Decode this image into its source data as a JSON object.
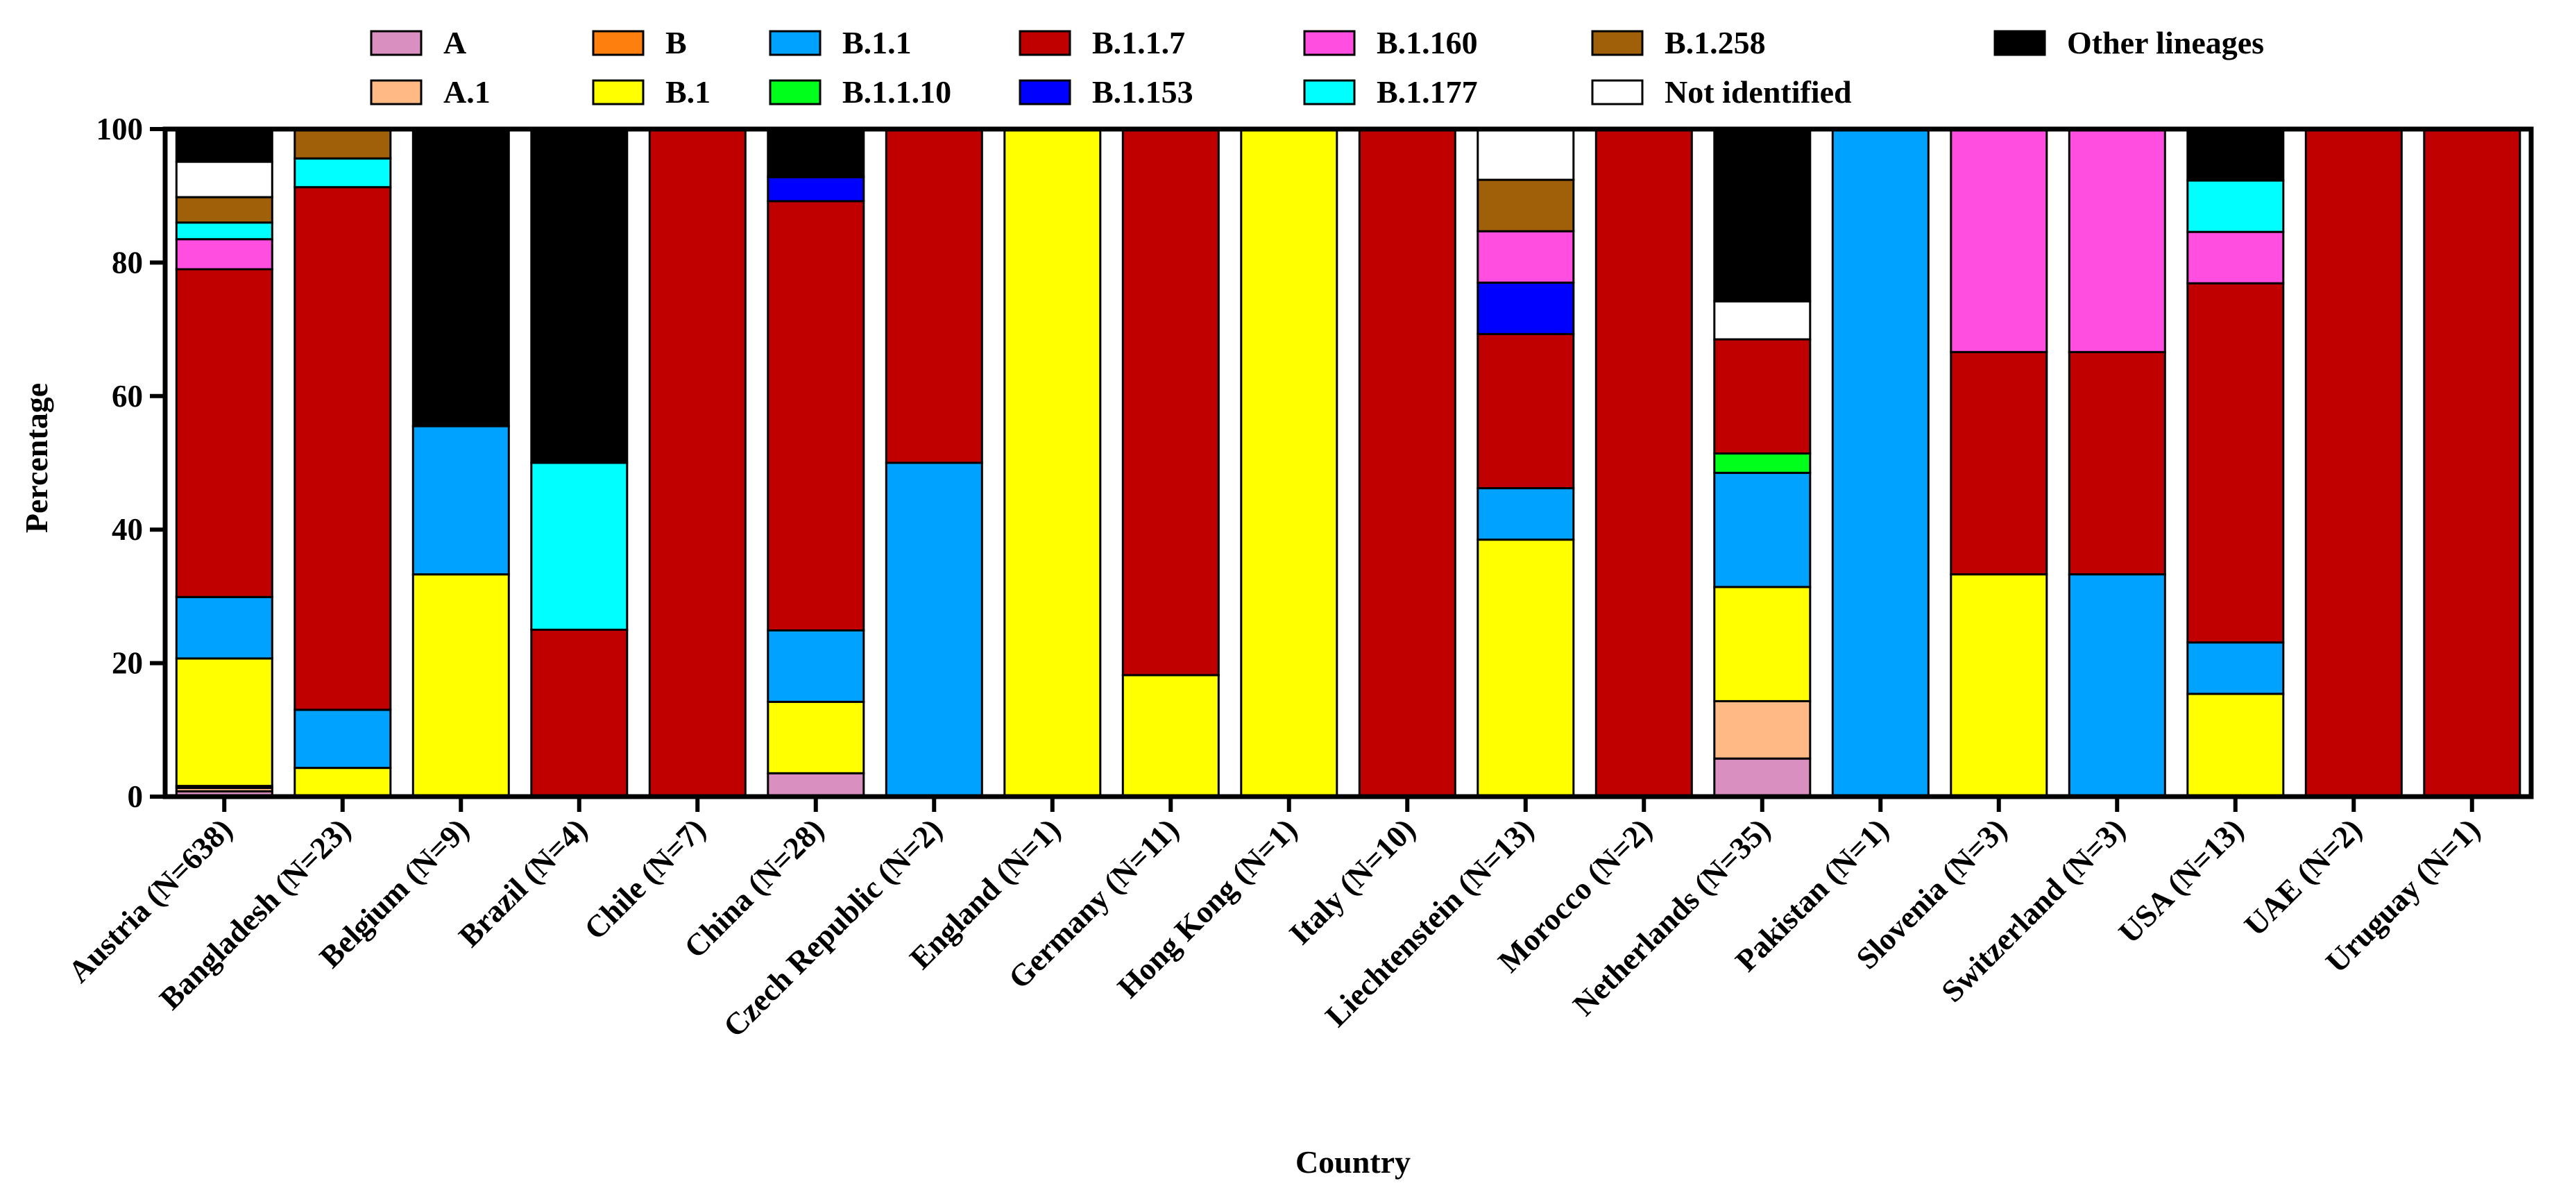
{
  "chart_data": {
    "type": "bar",
    "stacked": true,
    "title": "",
    "xlabel": "Country",
    "ylabel": "Percentage",
    "ylim": [
      0,
      100
    ],
    "yticks": [
      0,
      20,
      40,
      60,
      80,
      100
    ],
    "yticks_labels": [
      "0",
      "20",
      "40",
      "60",
      "80",
      "100"
    ],
    "grid": false,
    "legend_position": "top",
    "categories": [
      "Austria (N=638)",
      "Bangladesh (N=23)",
      "Belgium (N=9)",
      "Brazil (N=4)",
      "Chile (N=7)",
      "China (N=28)",
      "Czech Republic (N=2)",
      "England (N=1)",
      "Germany (N=11)",
      "Hong Kong (N=1)",
      "Italy (N=10)",
      "Liechtenstein (N=13)",
      "Morocco (N=2)",
      "Netherlands (N=35)",
      "Pakistan (N=1)",
      "Slovenia (N=3)",
      "Switzerland (N=3)",
      "USA (N=13)",
      "UAE (N=2)",
      "Uruguay (N=1)"
    ],
    "series": [
      {
        "name": "A",
        "color": "#d98fbf",
        "values": [
          0.8,
          0,
          0,
          0,
          0,
          3.5,
          0,
          0,
          0,
          0,
          0,
          0,
          0,
          5.7,
          0,
          0,
          0,
          0,
          0,
          0
        ]
      },
      {
        "name": "A.1",
        "color": "#ffb984",
        "values": [
          0.5,
          0,
          0,
          0,
          0,
          0,
          0,
          0,
          0,
          0,
          0,
          0,
          0,
          8.6,
          0,
          0,
          0,
          0,
          0,
          0
        ]
      },
      {
        "name": "B",
        "color": "#ff7f0e",
        "values": [
          0.3,
          0,
          0,
          0,
          0,
          0,
          0,
          0,
          0,
          0,
          0,
          0,
          0,
          0,
          0,
          0,
          0,
          0,
          0,
          0
        ]
      },
      {
        "name": "B.1",
        "color": "#ffff00",
        "values": [
          19.1,
          4.3,
          33.3,
          0,
          0,
          10.7,
          0,
          100,
          18.2,
          100,
          0,
          38.5,
          0,
          17.1,
          0,
          33.3,
          0,
          15.4,
          0,
          0
        ]
      },
      {
        "name": "B.1.1",
        "color": "#00a2ff",
        "values": [
          9.2,
          8.7,
          22.2,
          0,
          0,
          10.7,
          50,
          0,
          0,
          0,
          0,
          7.7,
          0,
          17.1,
          100,
          0,
          33.3,
          7.7,
          0,
          0
        ]
      },
      {
        "name": "B.1.1.10",
        "color": "#00ff1a",
        "values": [
          0,
          0,
          0,
          0,
          0,
          0,
          0,
          0,
          0,
          0,
          0,
          0,
          0,
          2.9,
          0,
          0,
          0,
          0,
          0,
          0
        ]
      },
      {
        "name": "B.1.1.7",
        "color": "#c00000",
        "values": [
          49.1,
          78.3,
          0,
          25,
          100,
          64.3,
          50,
          0,
          81.8,
          0,
          100,
          23.1,
          100,
          17.1,
          0,
          33.3,
          33.3,
          53.8,
          100,
          100
        ]
      },
      {
        "name": "B.1.153",
        "color": "#0000ff",
        "values": [
          0,
          0,
          0,
          0,
          0,
          3.6,
          0,
          0,
          0,
          0,
          0,
          7.7,
          0,
          0,
          0,
          0,
          0,
          0,
          0,
          0
        ]
      },
      {
        "name": "B.1.160",
        "color": "#ff4ee0",
        "values": [
          4.5,
          0,
          0,
          0,
          0,
          0,
          0,
          0,
          0,
          0,
          0,
          7.7,
          0,
          0,
          0,
          33.4,
          33.4,
          7.7,
          0,
          0
        ]
      },
      {
        "name": "B.1.177",
        "color": "#00ffff",
        "values": [
          2.5,
          4.3,
          0,
          25,
          0,
          0,
          0,
          0,
          0,
          0,
          0,
          0,
          0,
          0,
          0,
          0,
          0,
          7.7,
          0,
          0
        ]
      },
      {
        "name": "B.1.258",
        "color": "#a0600a",
        "values": [
          3.8,
          4.4,
          0,
          0,
          0,
          0,
          0,
          0,
          0,
          0,
          0,
          7.7,
          0,
          0,
          0,
          0,
          0,
          0,
          0,
          0
        ]
      },
      {
        "name": "Not identified",
        "color": "#ffffff",
        "values": [
          5.3,
          0,
          0,
          0,
          0,
          0,
          0,
          0,
          0,
          0,
          0,
          7.6,
          0,
          5.7,
          0,
          0,
          0,
          0,
          0,
          0
        ]
      },
      {
        "name": "Other lineages",
        "color": "#000000",
        "values": [
          4.9,
          0,
          44.5,
          50,
          0,
          7.2,
          0,
          0,
          0,
          0,
          0,
          0,
          0,
          25.8,
          0,
          0,
          0,
          7.7,
          0,
          0
        ]
      }
    ]
  }
}
